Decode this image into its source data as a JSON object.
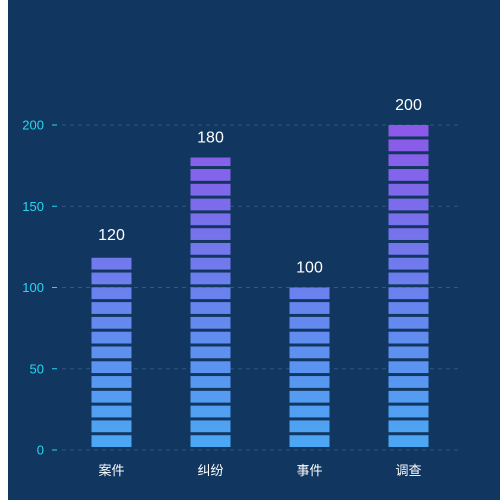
{
  "chart_data": {
    "type": "bar",
    "title": "",
    "xlabel": "",
    "ylabel": "",
    "categories": [
      "案件",
      "纠纷",
      "事件",
      "调查"
    ],
    "values": [
      120,
      180,
      100,
      200
    ],
    "y_ticks": [
      "0",
      "50",
      "100",
      "150",
      "200"
    ],
    "ylim": [
      0,
      200
    ],
    "grid": true,
    "segment_step": 9.1,
    "colors": {
      "background": "#11365f",
      "axis_tick_text": "#27d8f0",
      "label_text": "#ffffff",
      "grid": "#2a5a86",
      "bar_bottom": "#4aa8f3",
      "bar_top": "#8d58e8"
    }
  }
}
